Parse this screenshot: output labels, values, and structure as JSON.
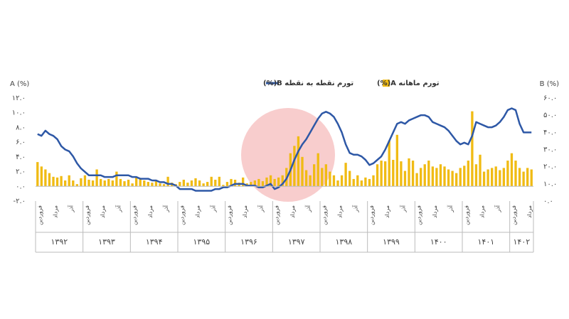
{
  "chart_data": {
    "type": "combo",
    "legend": "top",
    "grid": false,
    "ylabel": "A (%)",
    "y2label": "B (%)",
    "ylim": [
      -2,
      12
    ],
    "yticks": [
      {
        "value": 12,
        "label": "۱۲.۰"
      },
      {
        "value": 10,
        "label": "۱۰.۰"
      },
      {
        "value": 8,
        "label": "۸.۰"
      },
      {
        "value": 6,
        "label": "۶.۰"
      },
      {
        "value": 4,
        "label": "۴.۰"
      },
      {
        "value": 2,
        "label": "۲.۰"
      },
      {
        "value": 0,
        "label": "۰.۰"
      },
      {
        "value": -2,
        "label": "-۲.۰"
      }
    ],
    "y2lim": [
      0,
      60
    ],
    "y2ticks": [
      {
        "value": 60,
        "label": "۶۰.۰"
      },
      {
        "value": 50,
        "label": "۵۰.۰"
      },
      {
        "value": 40,
        "label": "۴۰.۰"
      },
      {
        "value": 30,
        "label": "۳۰.۰"
      },
      {
        "value": 20,
        "label": "۲۰.۰"
      },
      {
        "value": 10,
        "label": "۱۰.۰"
      },
      {
        "value": 0,
        "label": "۰.۰"
      }
    ],
    "x_groups": [
      "۱۳۹۲",
      "۱۳۹۳",
      "۱۳۹۴",
      "۱۳۹۵",
      "۱۳۹۶",
      "۱۳۹۷",
      "۱۳۹۸",
      "۱۳۹۹",
      "۱۴۰۰",
      "۱۴۰۱",
      "۱۴۰۲"
    ],
    "categories": [
      "فروردین",
      null,
      null,
      null,
      "مرداد",
      null,
      null,
      null,
      "آذر",
      null,
      null,
      null,
      "فروردین",
      null,
      null,
      null,
      "مرداد",
      null,
      null,
      null,
      "آذر",
      null,
      null,
      null,
      "فروردین",
      null,
      null,
      null,
      "مرداد",
      null,
      null,
      null,
      "آذر",
      null,
      null,
      null,
      "فروردین",
      null,
      null,
      null,
      "مرداد",
      null,
      null,
      null,
      "آذر",
      null,
      null,
      null,
      "فروردین",
      null,
      null,
      null,
      "مرداد",
      null,
      null,
      null,
      "آذر",
      null,
      null,
      null,
      "فروردین",
      null,
      null,
      null,
      "مرداد",
      null,
      null,
      null,
      "آذر",
      null,
      null,
      null,
      "فروردین",
      null,
      null,
      null,
      "مرداد",
      null,
      null,
      null,
      "آذر",
      null,
      null,
      null,
      "فروردین",
      null,
      null,
      null,
      "مرداد",
      null,
      null,
      null,
      "آذر",
      null,
      null,
      null,
      "فروردین",
      null,
      null,
      null,
      "مرداد",
      null,
      null,
      null,
      "آذر",
      null,
      null,
      null,
      "فروردین",
      null,
      null,
      null,
      "مرداد",
      null,
      null,
      null,
      "آذر",
      null,
      null,
      null,
      "فروردین",
      null,
      null,
      null,
      "مرداد",
      null
    ],
    "series": [
      {
        "name": "تورم ماهانه A(%)",
        "type": "bar",
        "color": "#f0bb14",
        "values": [
          3.3,
          2.7,
          2.3,
          1.8,
          1.3,
          1.2,
          1.4,
          0.8,
          1.5,
          0.8,
          0.3,
          1.1,
          1.5,
          0.9,
          0.8,
          2.3,
          1.0,
          0.8,
          1.0,
          0.8,
          2.0,
          1.0,
          0.7,
          0.9,
          0.4,
          1.2,
          1.1,
          0.8,
          0.6,
          0.5,
          0.9,
          0.4,
          0.3,
          1.3,
          0.5,
          0.3,
          0.6,
          0.9,
          0.5,
          0.8,
          1.1,
          0.8,
          0.4,
          0.6,
          1.3,
          0.9,
          1.3,
          0.2,
          0.6,
          1.0,
          0.9,
          0.5,
          1.2,
          0.4,
          0.6,
          0.8,
          1.0,
          0.7,
          1.2,
          1.5,
          1.0,
          1.2,
          1.5,
          2.5,
          4.5,
          5.5,
          6.8,
          4.0,
          2.2,
          1.5,
          3.0,
          4.5,
          2.5,
          3.0,
          2.0,
          1.5,
          0.8,
          1.5,
          3.2,
          2.1,
          1.0,
          1.5,
          0.8,
          1.2,
          1.0,
          1.5,
          3.0,
          3.5,
          3.4,
          6.2,
          3.6,
          7.0,
          3.4,
          2.1,
          3.8,
          3.5,
          1.8,
          2.5,
          3.0,
          3.5,
          2.7,
          2.5,
          3.0,
          2.7,
          2.3,
          2.1,
          1.8,
          2.5,
          2.8,
          3.5,
          10.2,
          3.0,
          4.3,
          2.0,
          2.3,
          2.5,
          2.7,
          2.2,
          2.5,
          3.5,
          4.5,
          3.5,
          2.5,
          2.0,
          2.5,
          2.3
        ]
      },
      {
        "name": "تورم نقطه به نقطه B(%)",
        "type": "line",
        "axis": "y2",
        "color": "#2e58a6",
        "values": [
          39,
          38,
          41,
          39,
          38,
          36,
          32,
          30,
          29,
          26,
          22,
          19,
          17,
          15,
          15,
          15,
          15,
          14,
          14,
          14,
          15,
          15,
          15,
          15,
          14,
          14,
          13,
          13,
          13,
          12,
          12,
          11,
          11,
          10,
          10,
          9,
          7,
          7,
          7,
          7,
          6,
          6,
          6,
          6,
          6,
          7,
          7,
          8,
          8,
          9,
          10,
          10,
          10,
          9,
          9,
          9,
          8,
          8,
          9,
          10,
          7,
          8,
          10,
          13,
          18,
          24,
          29,
          33,
          36,
          40,
          44,
          48,
          51,
          52,
          51,
          49,
          45,
          40,
          33,
          28,
          27,
          27,
          26,
          24,
          21,
          22,
          24,
          26,
          30,
          35,
          40,
          45,
          46,
          45,
          47,
          48,
          49,
          50,
          50,
          49,
          46,
          45,
          44,
          43,
          41,
          38,
          35,
          33,
          34,
          33,
          38,
          46,
          45,
          44,
          43,
          43,
          44,
          46,
          49,
          53,
          54,
          53,
          45,
          40,
          40,
          40
        ]
      }
    ]
  }
}
